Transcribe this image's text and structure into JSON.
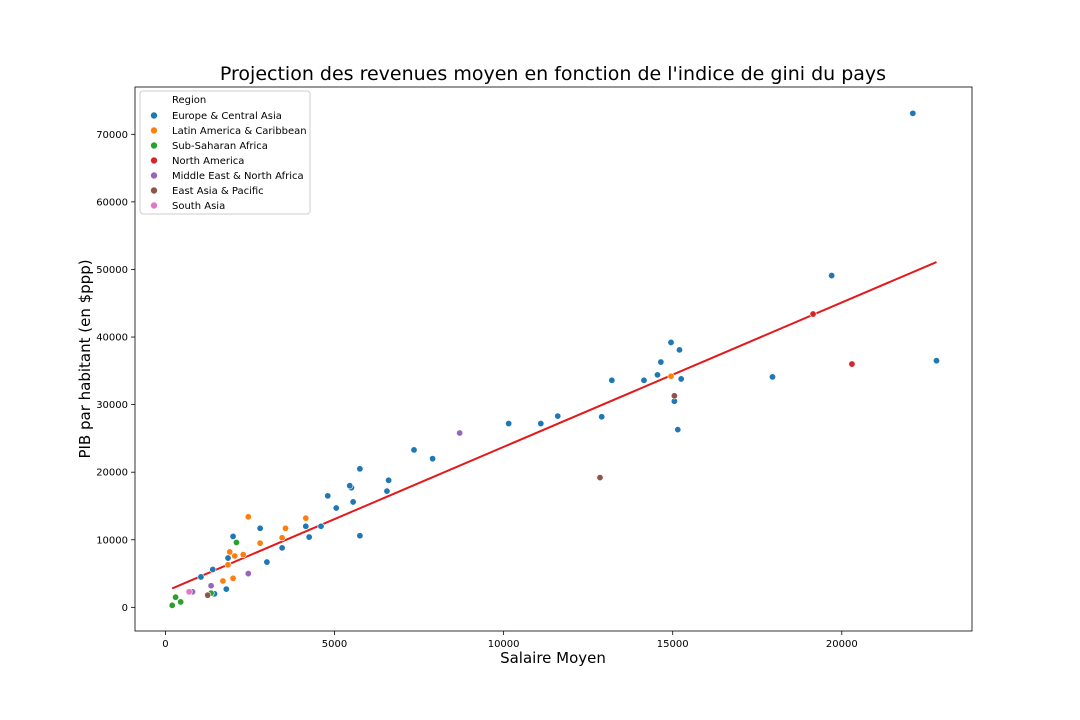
{
  "chart_data": {
    "type": "scatter",
    "title": "Projection des revenues moyen en fonction de l'indice de gini du pays",
    "xlabel": "Salaire Moyen",
    "ylabel": "PIB par habitant (en $ppp)",
    "xlim": [
      -900,
      23850
    ],
    "ylim": [
      -3500,
      77000
    ],
    "xticks": [
      0,
      5000,
      10000,
      15000,
      20000
    ],
    "yticks": [
      0,
      10000,
      20000,
      30000,
      40000,
      50000,
      60000,
      70000
    ],
    "grid": false,
    "legend": {
      "title": "Region",
      "position": "top-left"
    },
    "series": [
      {
        "name": "Europe & Central Asia",
        "color": "#1f77b4",
        "points": [
          [
            22100,
            73100
          ],
          [
            19700,
            49100
          ],
          [
            22800,
            36500
          ],
          [
            17950,
            34100
          ],
          [
            14950,
            39200
          ],
          [
            15200,
            38100
          ],
          [
            14650,
            36300
          ],
          [
            14550,
            34400
          ],
          [
            15250,
            33800
          ],
          [
            15050,
            30500
          ],
          [
            15150,
            26300
          ],
          [
            14150,
            33600
          ],
          [
            13200,
            33600
          ],
          [
            12900,
            28200
          ],
          [
            11600,
            28300
          ],
          [
            11100,
            27200
          ],
          [
            10150,
            27200
          ],
          [
            7900,
            22000
          ],
          [
            7350,
            23300
          ],
          [
            6600,
            18800
          ],
          [
            6550,
            17200
          ],
          [
            5750,
            20500
          ],
          [
            5500,
            17700
          ],
          [
            5450,
            18000
          ],
          [
            5550,
            15600
          ],
          [
            4800,
            16500
          ],
          [
            5050,
            14700
          ],
          [
            4600,
            12000
          ],
          [
            4150,
            12000
          ],
          [
            4250,
            10400
          ],
          [
            5750,
            10600
          ],
          [
            3450,
            8800
          ],
          [
            2800,
            11700
          ],
          [
            2000,
            10500
          ],
          [
            3000,
            6700
          ],
          [
            1850,
            7300
          ],
          [
            1400,
            5600
          ],
          [
            1050,
            4500
          ],
          [
            1800,
            2700
          ],
          [
            1450,
            2000
          ]
        ]
      },
      {
        "name": "Latin America & Caribbean",
        "color": "#ff7f0e",
        "points": [
          [
            14950,
            34200
          ],
          [
            2450,
            13400
          ],
          [
            4150,
            13200
          ],
          [
            3550,
            11700
          ],
          [
            3450,
            10300
          ],
          [
            2800,
            9500
          ],
          [
            2050,
            7600
          ],
          [
            2300,
            7800
          ],
          [
            1900,
            8200
          ],
          [
            1850,
            6300
          ],
          [
            2000,
            4300
          ],
          [
            1700,
            3900
          ]
        ]
      },
      {
        "name": "Sub-Saharan Africa",
        "color": "#2ca02c",
        "points": [
          [
            2100,
            9600
          ],
          [
            1350,
            2100
          ],
          [
            300,
            1500
          ],
          [
            450,
            800
          ],
          [
            200,
            300
          ]
        ]
      },
      {
        "name": "North America",
        "color": "#d62728",
        "points": [
          [
            19150,
            43400
          ],
          [
            20300,
            36000
          ]
        ]
      },
      {
        "name": "Middle East & North Africa",
        "color": "#9467bd",
        "points": [
          [
            8700,
            25800
          ],
          [
            2450,
            5000
          ],
          [
            1350,
            3200
          ],
          [
            800,
            2300
          ]
        ]
      },
      {
        "name": "East Asia & Pacific",
        "color": "#8c564b",
        "points": [
          [
            15050,
            31300
          ],
          [
            12850,
            19200
          ],
          [
            1250,
            1800
          ]
        ]
      },
      {
        "name": "South Asia",
        "color": "#e377c2",
        "points": [
          [
            700,
            2300
          ]
        ]
      }
    ],
    "regression_line": {
      "color": "#e31a1c",
      "x": [
        200,
        22800
      ],
      "y": [
        2800,
        51100
      ]
    }
  }
}
